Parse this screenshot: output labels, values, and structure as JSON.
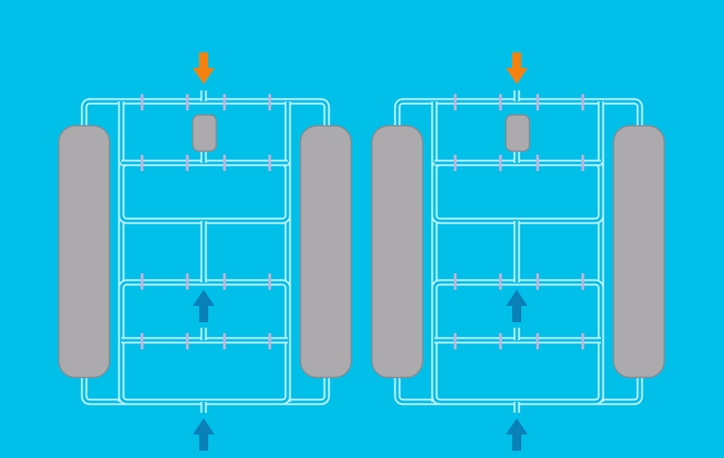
{
  "colors": {
    "background": "#00bfe8",
    "frame_outer": "#bff0ff",
    "frame_inner": "#00bfe8",
    "part_fill": "#acaaad",
    "part_stroke": "#8a8a90",
    "gate_mark": "#c5b2d8",
    "arrow_down": "#f5820f",
    "arrow_up": "#0a80b8"
  },
  "panels": [
    {
      "name": "sprue-left",
      "top_arrow": {
        "direction": "down",
        "icon": "arrow-down-icon",
        "color_key": "arrow_down"
      },
      "middle_arrow": {
        "direction": "up",
        "icon": "arrow-up-icon",
        "color_key": "arrow_up"
      },
      "bottom_arrow": {
        "direction": "up",
        "icon": "arrow-up-icon",
        "color_key": "arrow_up"
      }
    },
    {
      "name": "sprue-right",
      "top_arrow": {
        "direction": "down",
        "icon": "arrow-down-icon",
        "color_key": "arrow_down"
      },
      "middle_arrow": {
        "direction": "up",
        "icon": "arrow-up-icon",
        "color_key": "arrow_up"
      },
      "bottom_arrow": {
        "direction": "up",
        "icon": "arrow-up-icon",
        "color_key": "arrow_up"
      }
    }
  ]
}
